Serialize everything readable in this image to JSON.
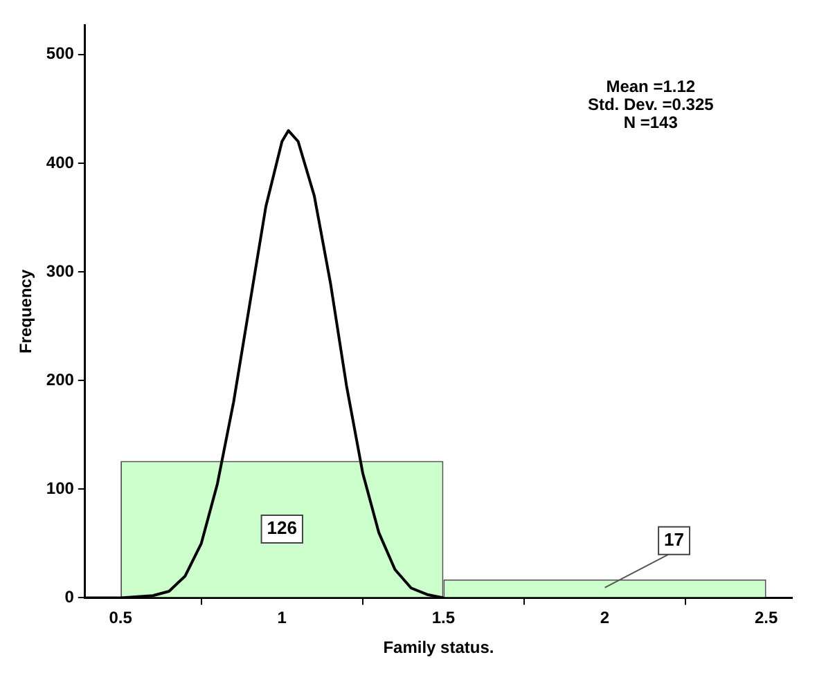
{
  "chart_data": {
    "type": "histogram",
    "xlabel": "Family status.",
    "ylabel": "Frequency",
    "bins": [
      0.5,
      1.5,
      2.5
    ],
    "values": [
      126,
      17
    ],
    "color": "#ccffcc",
    "value_labels": [
      "126",
      "17"
    ],
    "series": [
      {
        "type": "line",
        "color": "#000000",
        "x": [
          0.39,
          0.5,
          0.6,
          0.65,
          0.7,
          0.75,
          0.8,
          0.85,
          0.9,
          0.95,
          1.0,
          1.02,
          1.05,
          1.1,
          1.15,
          1.2,
          1.25,
          1.3,
          1.35,
          1.4,
          1.45,
          1.5
        ],
        "values": [
          0,
          0,
          2,
          6,
          20,
          50,
          105,
          180,
          270,
          360,
          420,
          430,
          420,
          370,
          290,
          195,
          115,
          60,
          26,
          9,
          3,
          0
        ]
      }
    ],
    "annotations": [
      "Mean =1.12",
      "Std. Dev. =0.325",
      "N =143"
    ],
    "xlim": [
      0.39,
      2.58
    ],
    "ylim": [
      0,
      527
    ],
    "xticks": [
      0.5,
      1,
      1.5,
      2,
      2.5
    ],
    "yticks": [
      0,
      100,
      200,
      300,
      400,
      500
    ],
    "grid": false,
    "legend": false,
    "marker": "none",
    "line_style": "solid"
  }
}
